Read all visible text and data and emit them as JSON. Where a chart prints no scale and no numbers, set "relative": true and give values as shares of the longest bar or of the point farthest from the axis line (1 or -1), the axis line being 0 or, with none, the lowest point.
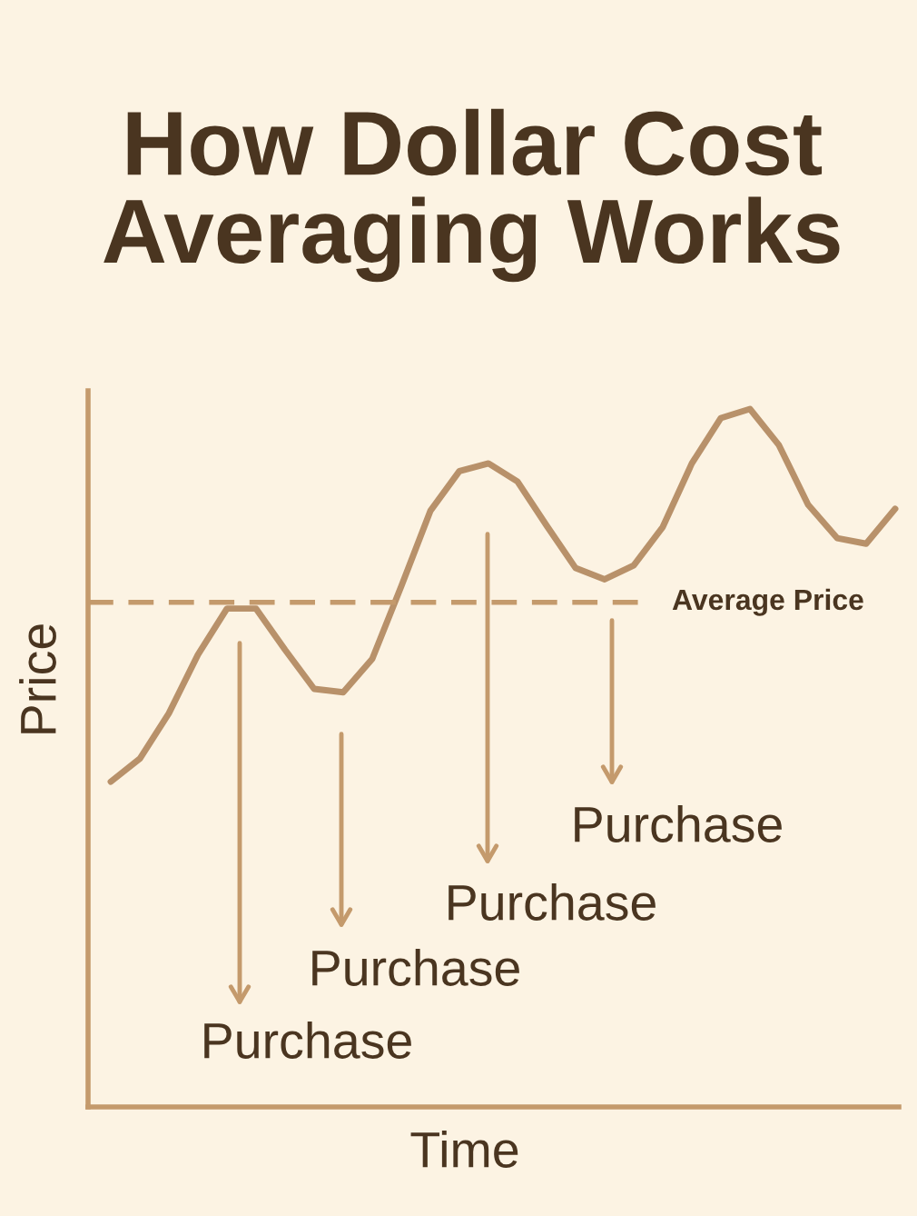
{
  "chart_data": {
    "type": "line",
    "title": "How Dollar Cost Averaging Works",
    "xlabel": "Time",
    "ylabel": "Price",
    "relative": true,
    "categories": [
      null,
      null,
      null,
      null,
      null,
      null,
      null,
      null,
      null,
      null,
      null,
      null,
      null,
      null,
      null,
      null,
      null,
      null,
      null,
      null,
      null,
      null,
      null,
      null,
      null,
      null,
      null,
      null
    ],
    "series": [
      {
        "color": "#b8916a",
        "values": [
          0.466,
          0.499,
          0.564,
          0.648,
          0.714,
          0.714,
          0.655,
          0.599,
          0.594,
          0.642,
          0.746,
          0.854,
          0.911,
          0.922,
          0.896,
          0.833,
          0.772,
          0.756,
          0.776,
          0.831,
          0.922,
          0.987,
          1.0,
          0.948,
          0.863,
          0.815,
          0.807,
          0.857
        ]
      }
    ],
    "ref_lines": [
      {
        "axis": "y",
        "value": 0.723,
        "label": "Average Price",
        "color": "#c49a6c",
        "line_style": "dashed"
      }
    ],
    "annotations": [
      "Purchase",
      "Purchase",
      "Purchase",
      "Purchase"
    ],
    "marker": "none",
    "line_style": "solid"
  }
}
